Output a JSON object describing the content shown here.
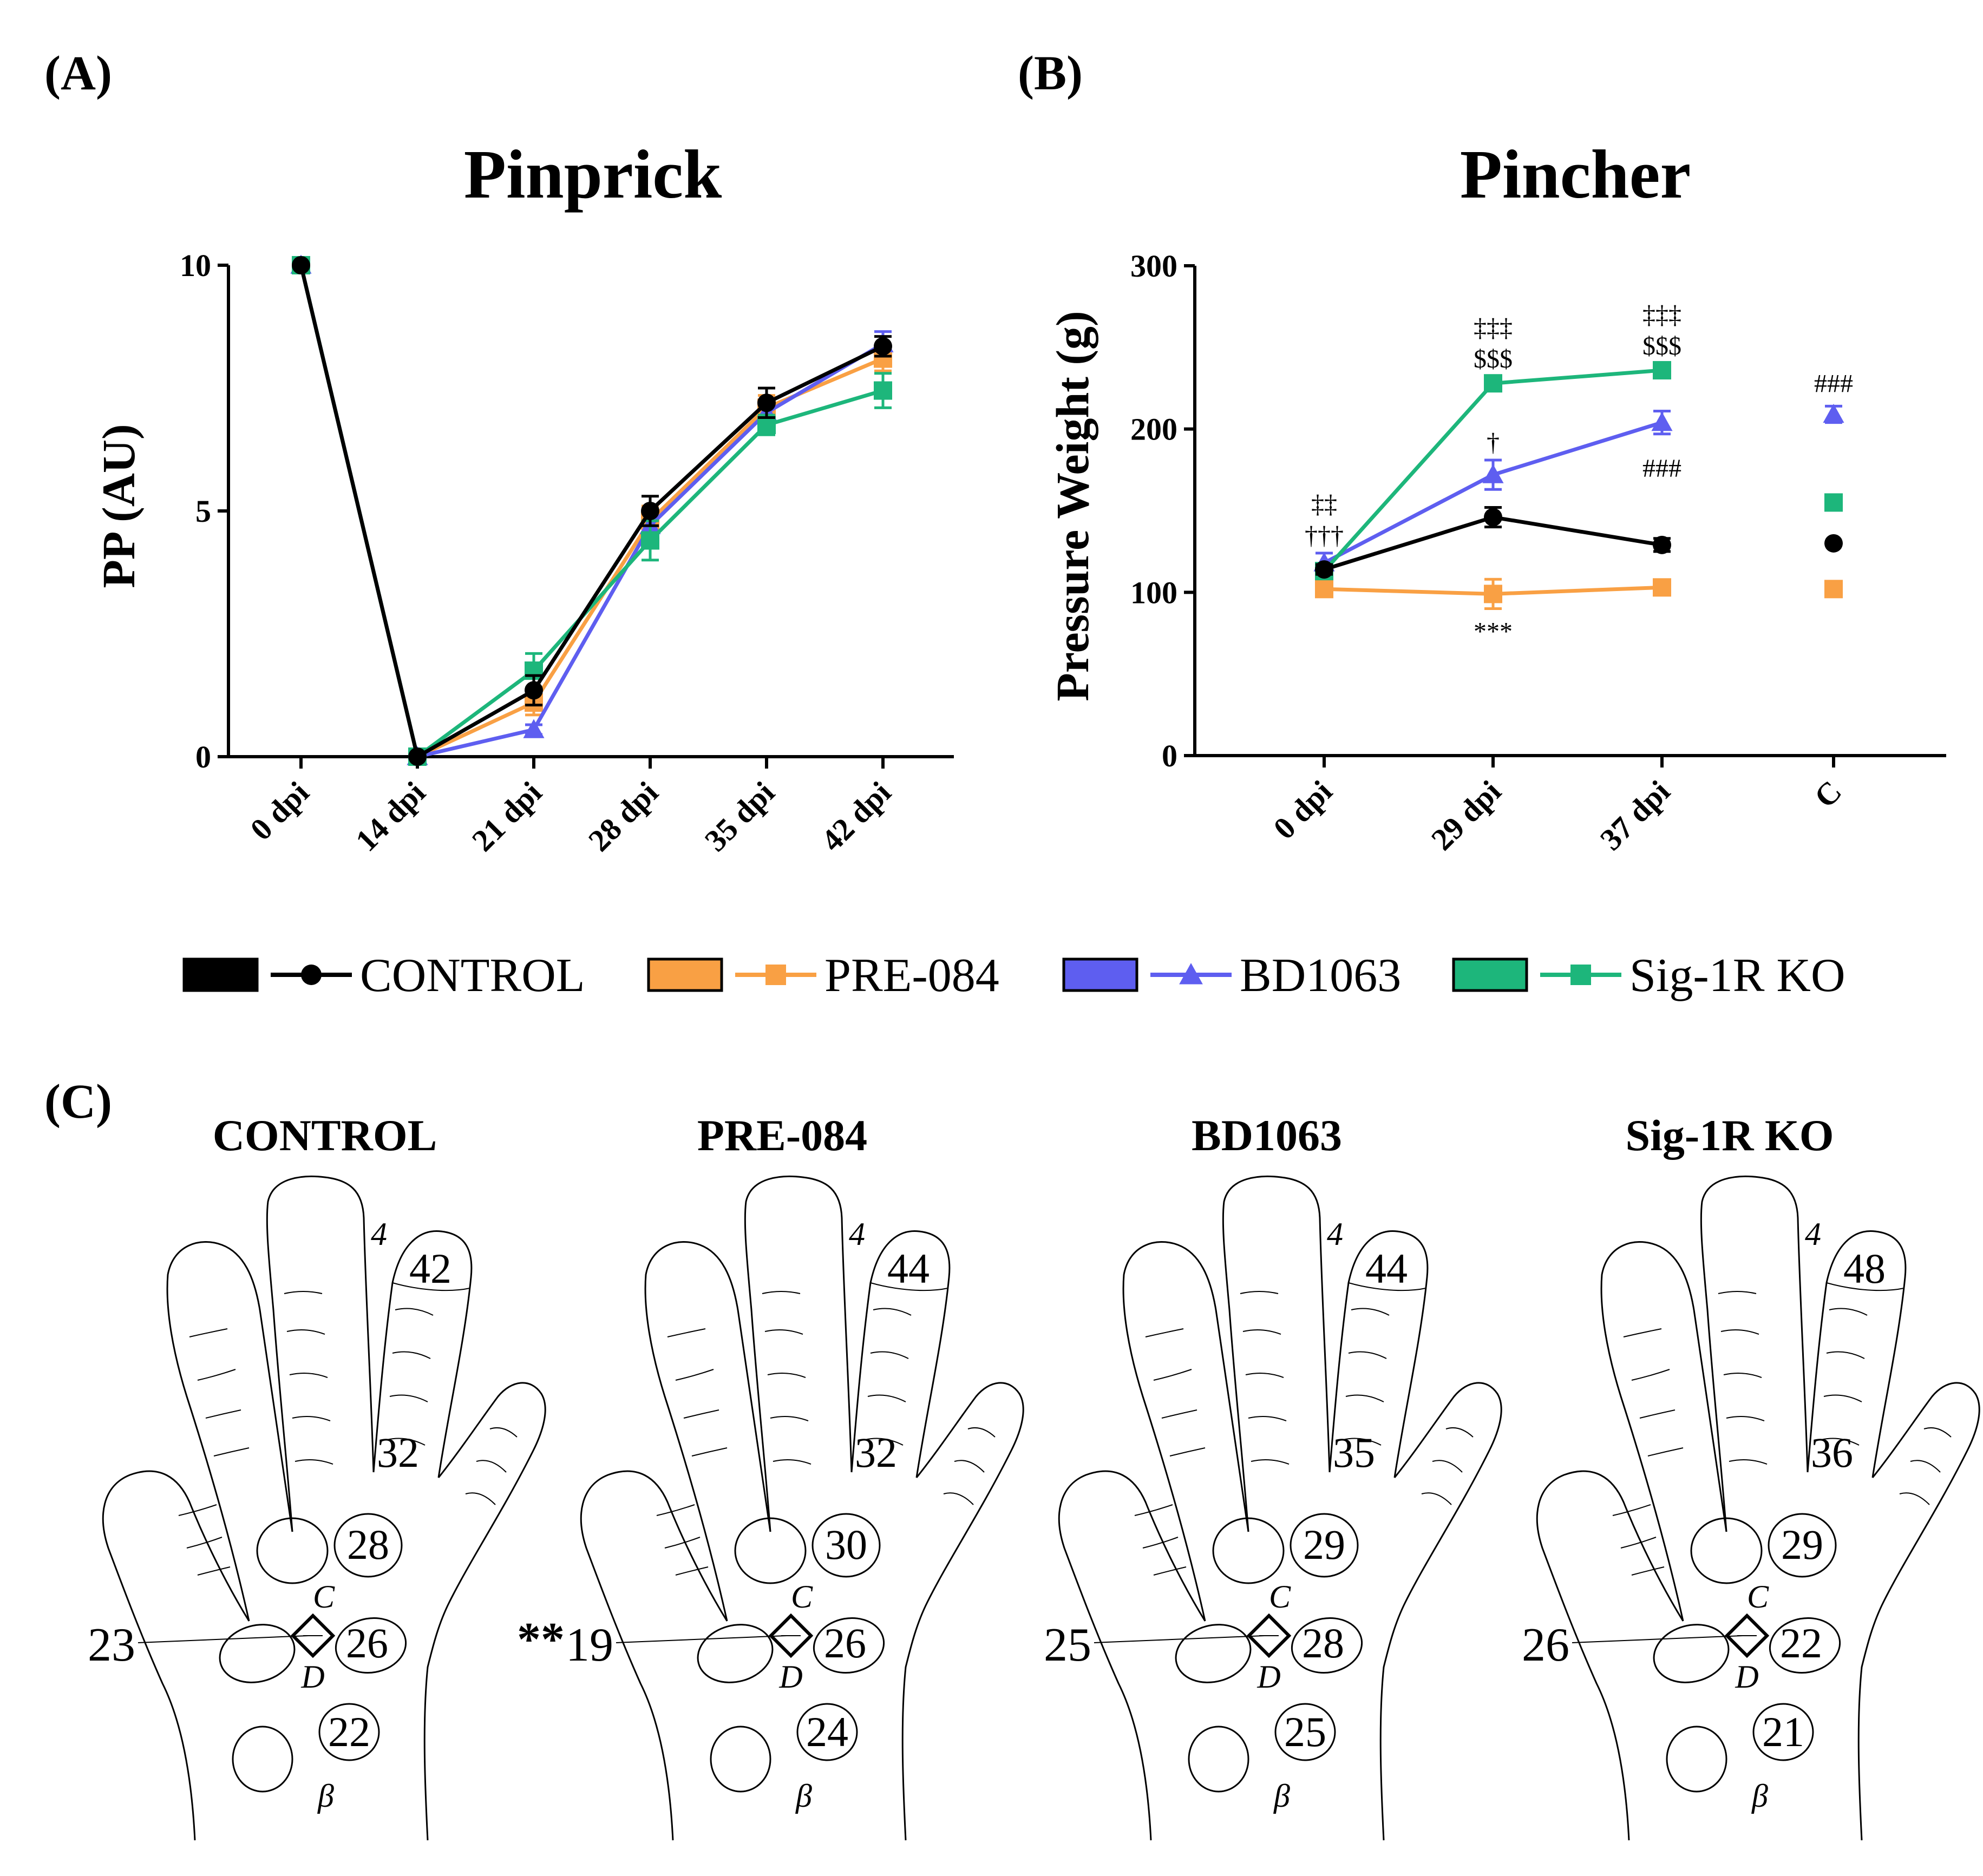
{
  "colors": {
    "CONTROL": "#000000",
    "PRE-084": "#f9a044",
    "BD1063": "#5e5ef0",
    "Sig-1R KO": "#1db67b"
  },
  "panels": {
    "A": "(A)",
    "B": "(B)",
    "C": "(C)"
  },
  "chart_data": [
    {
      "type": "line",
      "title": "Pinprick",
      "xlabel": "",
      "ylabel": "PP (AU)",
      "ylim": [
        0,
        10
      ],
      "yticks": [
        "0",
        "5",
        "10"
      ],
      "categories": [
        "0 dpi",
        "14 dpi",
        "21 dpi",
        "28 dpi",
        "35 dpi",
        "42 dpi"
      ],
      "series": [
        {
          "name": "PRE-084",
          "marker": "square",
          "values": [
            10,
            0,
            1.1,
            4.8,
            7.1,
            8.1
          ],
          "errors": [
            0,
            0,
            0.25,
            0.3,
            0.25,
            0.25
          ]
        },
        {
          "name": "BD1063",
          "marker": "triangle",
          "values": [
            10,
            0,
            0.55,
            4.7,
            7.0,
            8.4
          ],
          "errors": [
            0,
            0,
            0.1,
            0.3,
            0.25,
            0.25
          ]
        },
        {
          "name": "Sig-1R KO",
          "marker": "square",
          "values": [
            10,
            0,
            1.75,
            4.4,
            6.75,
            7.45
          ],
          "errors": [
            0,
            0,
            0.35,
            0.4,
            0.2,
            0.35
          ]
        },
        {
          "name": "CONTROL",
          "marker": "circle",
          "values": [
            10,
            0,
            1.35,
            5.0,
            7.2,
            8.35
          ],
          "errors": [
            0,
            0,
            0.3,
            0.3,
            0.3,
            0.2
          ]
        }
      ]
    },
    {
      "type": "line",
      "title": "Pincher",
      "xlabel": "",
      "ylabel": "Pressure Weight (g)",
      "ylim": [
        0,
        300
      ],
      "yticks": [
        "0",
        "100",
        "200",
        "300"
      ],
      "categories": [
        "0 dpi",
        "29 dpi",
        "37 dpi",
        "C"
      ],
      "series": [
        {
          "name": "PRE-084",
          "marker": "square",
          "values": [
            102,
            99,
            103,
            102
          ],
          "errors": [
            3,
            9,
            4,
            0
          ]
        },
        {
          "name": "BD1063",
          "marker": "triangle",
          "values": [
            118,
            172,
            204,
            209
          ],
          "errors": [
            6,
            9,
            7,
            5
          ]
        },
        {
          "name": "Sig-1R KO",
          "marker": "square",
          "values": [
            113,
            228,
            236,
            155
          ],
          "errors": [
            3,
            3,
            3,
            0
          ]
        },
        {
          "name": "CONTROL",
          "marker": "circle",
          "values": [
            114,
            146,
            129,
            130
          ],
          "errors": [
            3,
            6,
            4,
            0
          ]
        }
      ],
      "connected_categories": 3,
      "annotations": [
        {
          "category": "0 dpi",
          "above_value": 125,
          "lines": [
            "‡‡",
            "†††"
          ]
        },
        {
          "category": "29 dpi",
          "above_value": 233,
          "lines": [
            "‡‡‡",
            "$$$"
          ]
        },
        {
          "category": "29 dpi",
          "above_value": 182,
          "lines": [
            "†"
          ]
        },
        {
          "category": "29 dpi",
          "below_value": 90,
          "lines": [
            "***"
          ]
        },
        {
          "category": "37 dpi",
          "above_value": 241,
          "lines": [
            "‡‡‡",
            "$$$"
          ]
        },
        {
          "category": "37 dpi",
          "above_value": 166,
          "lines": [
            "###"
          ]
        },
        {
          "category": "C",
          "above_value": 218,
          "lines": [
            "###"
          ]
        }
      ]
    }
  ],
  "legend": [
    {
      "label": "CONTROL",
      "marker": "circle"
    },
    {
      "label": "PRE-084",
      "marker": "square"
    },
    {
      "label": "BD1063",
      "marker": "triangle"
    },
    {
      "label": "Sig-1R KO",
      "marker": "square"
    }
  ],
  "hands": [
    {
      "title": "CONTROL",
      "v_top": "42",
      "v_base": "32",
      "v_pad": "28",
      "v_right": "26",
      "v_bottom": "22",
      "v_left": "23",
      "left_mark": "",
      "digit": "4",
      "c": "C",
      "d": "D",
      "beta": "β"
    },
    {
      "title": "PRE-084",
      "v_top": "44",
      "v_base": "32",
      "v_pad": "30",
      "v_right": "26",
      "v_bottom": "24",
      "v_left": "19",
      "left_mark": "**",
      "digit": "4",
      "c": "C",
      "d": "D",
      "beta": "β"
    },
    {
      "title": "BD1063",
      "v_top": "44",
      "v_base": "35",
      "v_pad": "29",
      "v_right": "28",
      "v_bottom": "25",
      "v_left": "25",
      "left_mark": "",
      "digit": "4",
      "c": "C",
      "d": "D",
      "beta": "β"
    },
    {
      "title": "Sig-1R KO",
      "v_top": "48",
      "v_base": "36",
      "v_pad": "29",
      "v_right": "22",
      "v_bottom": "21",
      "v_left": "26",
      "left_mark": "",
      "digit": "4",
      "c": "C",
      "d": "D",
      "beta": "β"
    }
  ]
}
